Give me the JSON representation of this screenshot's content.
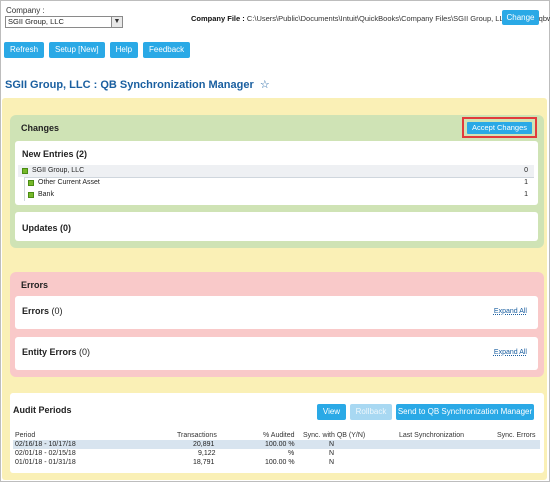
{
  "company": {
    "label": "Company :",
    "selected": "SGII Group, LLC",
    "file_label": "Company File :",
    "file_path": "C:\\Users\\Public\\Documents\\Intuit\\QuickBooks\\Company Files\\SGII Group, LLC qb-beta.qbw",
    "change_label": "Change"
  },
  "toolbar": {
    "refresh": "Refresh",
    "setup": "Setup [New]",
    "help": "Help",
    "feedback": "Feedback"
  },
  "page": {
    "title": "SGII Group, LLC : QB Synchronization Manager",
    "star": "☆"
  },
  "changes": {
    "title": "Changes",
    "accept_label": "Accept Changes",
    "new_entries": {
      "title": "New Entries",
      "count": "(2)",
      "rows": [
        {
          "label": "SGII Group, LLC",
          "value": "0"
        },
        {
          "label": "Other Current Asset",
          "value": "1"
        },
        {
          "label": "Bank",
          "value": "1"
        }
      ]
    },
    "updates": {
      "title": "Updates",
      "count": "(0)"
    }
  },
  "errors": {
    "title": "Errors",
    "errors_card": {
      "title": "Errors",
      "count": "(0)",
      "expand": "Expand All"
    },
    "entity_card": {
      "title": "Entity Errors",
      "count": "(0)",
      "expand": "Expand All"
    }
  },
  "audit": {
    "title": "Audit Periods",
    "view_label": "View",
    "rollback_label": "Rollback",
    "send_label": "Send to QB Synchronization Manager",
    "columns": [
      "Period",
      "Transactions",
      "% Audited",
      "Sync. with QB (Y/N)",
      "Last Synchronization",
      "Sync. Errors"
    ],
    "rows": [
      {
        "period": "02/16/18 - 10/17/18",
        "transactions": "20,891",
        "audited": "100.00 %",
        "sync": "N",
        "last": "",
        "errors": ""
      },
      {
        "period": "02/01/18 - 02/15/18",
        "transactions": "9,122",
        "audited": "%",
        "sync": "N",
        "last": "",
        "errors": ""
      },
      {
        "period": "01/01/18 - 01/31/18",
        "transactions": "18,791",
        "audited": "100.00 %",
        "sync": "N",
        "last": "",
        "errors": ""
      }
    ]
  },
  "colors": {
    "accent": "#2aa9e6",
    "title_blue": "#1a5fa0",
    "yellow_panel": "#faf0b6",
    "green_panel": "#cfe3b5",
    "red_panel": "#f9c9c9",
    "highlight_red": "#e23b3b"
  }
}
